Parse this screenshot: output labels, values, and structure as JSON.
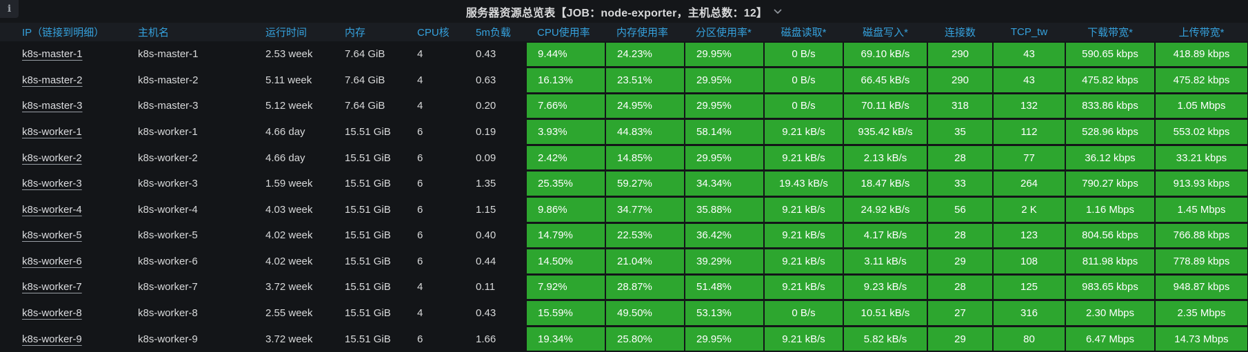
{
  "panel": {
    "title": "服务器资源总览表【JOB：node-exporter，主机总数：12】",
    "info_icon": "i"
  },
  "colors": {
    "green_cell": "#2da62f",
    "header_text_blue": "#35a1dd",
    "panel_bg": "#141619",
    "cell_text": "#d8d9da"
  },
  "table": {
    "columns": [
      {
        "key": "ip",
        "label": "IP（链接到明细）",
        "green": false,
        "align": "left"
      },
      {
        "key": "hostname",
        "label": "主机名",
        "green": false,
        "align": "left"
      },
      {
        "key": "uptime",
        "label": "运行时间",
        "green": false,
        "align": "left"
      },
      {
        "key": "memory",
        "label": "内存",
        "green": false,
        "align": "left"
      },
      {
        "key": "cpu_cores",
        "label": "CPU核",
        "green": false,
        "align": "left"
      },
      {
        "key": "load_5m",
        "label": "5m负载",
        "green": false,
        "align": "left"
      },
      {
        "key": "cpu_usage",
        "label": "CPU使用率",
        "green": true,
        "align": "left"
      },
      {
        "key": "mem_usage",
        "label": "内存使用率",
        "green": true,
        "align": "left"
      },
      {
        "key": "partition_usage",
        "label": "分区使用率*",
        "green": true,
        "align": "left"
      },
      {
        "key": "disk_read",
        "label": "磁盘读取*",
        "green": true,
        "align": "center"
      },
      {
        "key": "disk_write",
        "label": "磁盘写入*",
        "green": true,
        "align": "center"
      },
      {
        "key": "connections",
        "label": "连接数",
        "green": true,
        "align": "center"
      },
      {
        "key": "tcp_tw",
        "label": "TCP_tw",
        "green": true,
        "align": "center"
      },
      {
        "key": "download",
        "label": "下载带宽*",
        "green": true,
        "align": "center"
      },
      {
        "key": "upload",
        "label": "上传带宽*",
        "green": true,
        "align": "center"
      }
    ],
    "rows": [
      {
        "ip": "k8s-master-1",
        "hostname": "k8s-master-1",
        "uptime": "2.53 week",
        "memory": "7.64 GiB",
        "cpu_cores": "4",
        "load_5m": "0.43",
        "cpu_usage": "9.44%",
        "mem_usage": "24.23%",
        "partition_usage": "29.95%",
        "disk_read": "0 B/s",
        "disk_write": "69.10 kB/s",
        "connections": "290",
        "tcp_tw": "43",
        "download": "590.65 kbps",
        "upload": "418.89 kbps"
      },
      {
        "ip": "k8s-master-2",
        "hostname": "k8s-master-2",
        "uptime": "5.11 week",
        "memory": "7.64 GiB",
        "cpu_cores": "4",
        "load_5m": "0.63",
        "cpu_usage": "16.13%",
        "mem_usage": "23.51%",
        "partition_usage": "29.95%",
        "disk_read": "0 B/s",
        "disk_write": "66.45 kB/s",
        "connections": "290",
        "tcp_tw": "43",
        "download": "475.82 kbps",
        "upload": "475.82 kbps"
      },
      {
        "ip": "k8s-master-3",
        "hostname": "k8s-master-3",
        "uptime": "5.12 week",
        "memory": "7.64 GiB",
        "cpu_cores": "4",
        "load_5m": "0.20",
        "cpu_usage": "7.66%",
        "mem_usage": "24.95%",
        "partition_usage": "29.95%",
        "disk_read": "0 B/s",
        "disk_write": "70.11 kB/s",
        "connections": "318",
        "tcp_tw": "132",
        "download": "833.86 kbps",
        "upload": "1.05 Mbps"
      },
      {
        "ip": "k8s-worker-1",
        "hostname": "k8s-worker-1",
        "uptime": "4.66 day",
        "memory": "15.51 GiB",
        "cpu_cores": "6",
        "load_5m": "0.19",
        "cpu_usage": "3.93%",
        "mem_usage": "44.83%",
        "partition_usage": "58.14%",
        "disk_read": "9.21 kB/s",
        "disk_write": "935.42 kB/s",
        "connections": "35",
        "tcp_tw": "112",
        "download": "528.96 kbps",
        "upload": "553.02 kbps"
      },
      {
        "ip": "k8s-worker-2",
        "hostname": "k8s-worker-2",
        "uptime": "4.66 day",
        "memory": "15.51 GiB",
        "cpu_cores": "6",
        "load_5m": "0.09",
        "cpu_usage": "2.42%",
        "mem_usage": "14.85%",
        "partition_usage": "29.95%",
        "disk_read": "9.21 kB/s",
        "disk_write": "2.13 kB/s",
        "connections": "28",
        "tcp_tw": "77",
        "download": "36.12 kbps",
        "upload": "33.21 kbps"
      },
      {
        "ip": "k8s-worker-3",
        "hostname": "k8s-worker-3",
        "uptime": "1.59 week",
        "memory": "15.51 GiB",
        "cpu_cores": "6",
        "load_5m": "1.35",
        "cpu_usage": "25.35%",
        "mem_usage": "59.27%",
        "partition_usage": "34.34%",
        "disk_read": "19.43 kB/s",
        "disk_write": "18.47 kB/s",
        "connections": "33",
        "tcp_tw": "264",
        "download": "790.27 kbps",
        "upload": "913.93 kbps"
      },
      {
        "ip": "k8s-worker-4",
        "hostname": "k8s-worker-4",
        "uptime": "4.03 week",
        "memory": "15.51 GiB",
        "cpu_cores": "6",
        "load_5m": "1.15",
        "cpu_usage": "9.86%",
        "mem_usage": "34.77%",
        "partition_usage": "35.88%",
        "disk_read": "9.21 kB/s",
        "disk_write": "24.92 kB/s",
        "connections": "56",
        "tcp_tw": "2 K",
        "download": "1.16 Mbps",
        "upload": "1.45 Mbps"
      },
      {
        "ip": "k8s-worker-5",
        "hostname": "k8s-worker-5",
        "uptime": "4.02 week",
        "memory": "15.51 GiB",
        "cpu_cores": "6",
        "load_5m": "0.40",
        "cpu_usage": "14.79%",
        "mem_usage": "22.53%",
        "partition_usage": "36.42%",
        "disk_read": "9.21 kB/s",
        "disk_write": "4.17 kB/s",
        "connections": "28",
        "tcp_tw": "123",
        "download": "804.56 kbps",
        "upload": "766.88 kbps"
      },
      {
        "ip": "k8s-worker-6",
        "hostname": "k8s-worker-6",
        "uptime": "4.02 week",
        "memory": "15.51 GiB",
        "cpu_cores": "6",
        "load_5m": "0.44",
        "cpu_usage": "14.50%",
        "mem_usage": "21.04%",
        "partition_usage": "39.29%",
        "disk_read": "9.21 kB/s",
        "disk_write": "3.11 kB/s",
        "connections": "29",
        "tcp_tw": "108",
        "download": "811.98 kbps",
        "upload": "778.89 kbps"
      },
      {
        "ip": "k8s-worker-7",
        "hostname": "k8s-worker-7",
        "uptime": "3.72 week",
        "memory": "15.51 GiB",
        "cpu_cores": "4",
        "load_5m": "0.11",
        "cpu_usage": "7.92%",
        "mem_usage": "28.87%",
        "partition_usage": "51.48%",
        "disk_read": "9.21 kB/s",
        "disk_write": "9.23 kB/s",
        "connections": "28",
        "tcp_tw": "125",
        "download": "983.65 kbps",
        "upload": "948.87 kbps"
      },
      {
        "ip": "k8s-worker-8",
        "hostname": "k8s-worker-8",
        "uptime": "2.55 week",
        "memory": "15.51 GiB",
        "cpu_cores": "4",
        "load_5m": "0.43",
        "cpu_usage": "15.59%",
        "mem_usage": "49.50%",
        "partition_usage": "53.13%",
        "disk_read": "0 B/s",
        "disk_write": "10.51 kB/s",
        "connections": "27",
        "tcp_tw": "316",
        "download": "2.30 Mbps",
        "upload": "2.35 Mbps"
      },
      {
        "ip": "k8s-worker-9",
        "hostname": "k8s-worker-9",
        "uptime": "3.72 week",
        "memory": "15.51 GiB",
        "cpu_cores": "6",
        "load_5m": "1.66",
        "cpu_usage": "19.34%",
        "mem_usage": "25.80%",
        "partition_usage": "29.95%",
        "disk_read": "9.21 kB/s",
        "disk_write": "5.82 kB/s",
        "connections": "29",
        "tcp_tw": "80",
        "download": "6.47 Mbps",
        "upload": "14.73 Mbps"
      }
    ]
  }
}
